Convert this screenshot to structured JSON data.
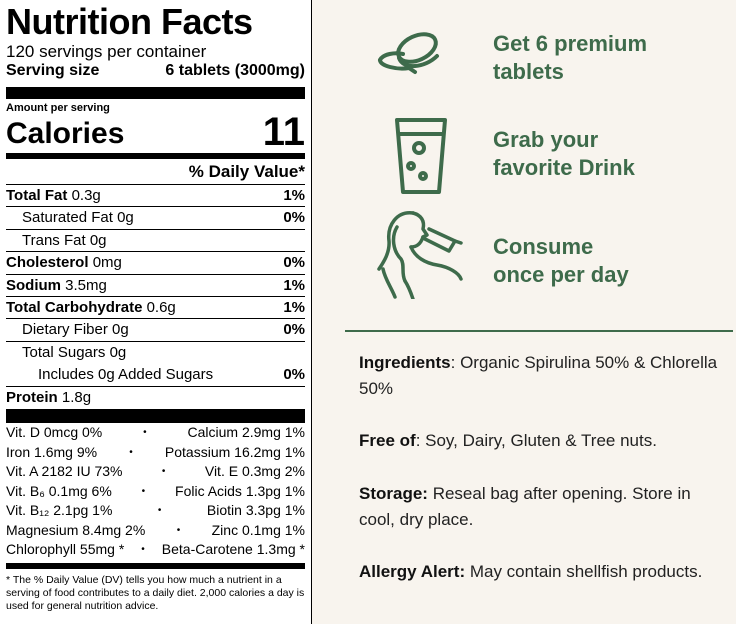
{
  "label": {
    "title": "Nutrition Facts",
    "servings": "120 servings per container",
    "serving_size_label": "Serving size",
    "serving_size_value": "6 tablets (3000mg)",
    "amount_per_serving": "Amount per serving",
    "calories_label": "Calories",
    "calories_value": "11",
    "dv_header": "% Daily Value*",
    "rows": [
      {
        "name": "Total Fat",
        "amount": "0.3g",
        "dv": "1%"
      },
      {
        "name": "Saturated Fat",
        "amount": "0g",
        "dv": "0%"
      },
      {
        "name": "Trans Fat",
        "amount": "0g",
        "dv": ""
      },
      {
        "name": "Cholesterol",
        "amount": "0mg",
        "dv": "0%"
      },
      {
        "name": "Sodium",
        "amount": "3.5mg",
        "dv": "1%"
      },
      {
        "name": "Total Carbohydrate",
        "amount": "0.6g",
        "dv": "1%"
      },
      {
        "name": "Dietary Fiber",
        "amount": "0g",
        "dv": "0%"
      },
      {
        "name": "Total Sugars",
        "amount": "0g",
        "dv": ""
      },
      {
        "name": "Includes 0g Added Sugars",
        "amount": "",
        "dv": "0%"
      },
      {
        "name": "Protein",
        "amount": "1.8g",
        "dv": ""
      }
    ],
    "vitamins": [
      {
        "left": "Vit. D 0mcg 0%",
        "right": "Calcium 2.9mg 1%"
      },
      {
        "left": "Iron 1.6mg 9%",
        "right": "Potassium 16.2mg 1%"
      },
      {
        "left": "Vit. A 2182 IU 73%",
        "right": "Vit. E 0.3mg 2%"
      },
      {
        "left": "Vit. B₆ 0.1mg 6%",
        "right": "Folic Acids 1.3pg 1%"
      },
      {
        "left": "Vit. B₁₂ 2.1pg 1%",
        "right": "Biotin 3.3pg 1%"
      },
      {
        "left": "Magnesium 8.4mg 2%",
        "right": "Zinc 0.1mg 1%"
      },
      {
        "left": "Chlorophyll 55mg *",
        "right": "Beta-Carotene 1.3mg *"
      }
    ],
    "dot": "•",
    "footnote": "* The % Daily Value (DV) tells you how much a nutrient in a serving of food contributes to a daily diet. 2,000 calories a day is used for general nutrition advice."
  },
  "steps": [
    {
      "line1": "Get 6 premium",
      "line2": "tablets",
      "icon": "tablets-icon"
    },
    {
      "line1": "Grab your",
      "line2": "favorite Drink",
      "icon": "drink-glass-icon"
    },
    {
      "line1": "Consume",
      "line2": "once per day",
      "icon": "person-drinking-icon"
    }
  ],
  "info": {
    "ingredients_label": "Ingredients",
    "ingredients_text": ": Organic Spirulina 50% & Chlorella 50%",
    "free_of_label": "Free of",
    "free_of_text": ": Soy, Dairy, Gluten & Tree nuts.",
    "storage_label": "Storage:",
    "storage_text": " Reseal bag after opening. Store in cool, dry place.",
    "allergy_label": "Allergy Alert:",
    "allergy_text": " May contain shellfish products."
  },
  "colors": {
    "accent_green": "#3e6b4b",
    "background": "#f8f4ee"
  }
}
